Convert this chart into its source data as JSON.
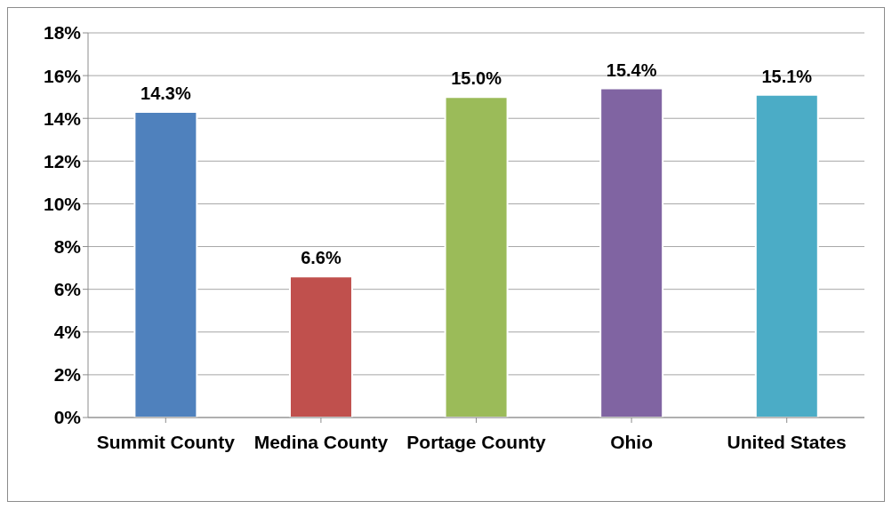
{
  "chart_data": {
    "type": "bar",
    "categories": [
      "Summit County",
      "Medina County",
      "Portage County",
      "Ohio",
      "United States"
    ],
    "values": [
      14.3,
      6.6,
      15.0,
      15.4,
      15.1
    ],
    "colors": [
      "#4f81bd",
      "#c0504d",
      "#9bbb59",
      "#8064a2",
      "#4bacc6"
    ],
    "value_labels": [
      "14.3%",
      "6.6%",
      "15.0%",
      "15.4%",
      "15.1%"
    ],
    "ylim": [
      0,
      18
    ],
    "yticks": [
      {
        "value": 0,
        "label": "0%"
      },
      {
        "value": 2,
        "label": "2%"
      },
      {
        "value": 4,
        "label": "4%"
      },
      {
        "value": 6,
        "label": "6%"
      },
      {
        "value": 8,
        "label": "8%"
      },
      {
        "value": 10,
        "label": "10%"
      },
      {
        "value": 12,
        "label": "12%"
      },
      {
        "value": 14,
        "label": "14%"
      },
      {
        "value": 16,
        "label": "16%"
      },
      {
        "value": 18,
        "label": "18%"
      }
    ],
    "grid": "y"
  }
}
